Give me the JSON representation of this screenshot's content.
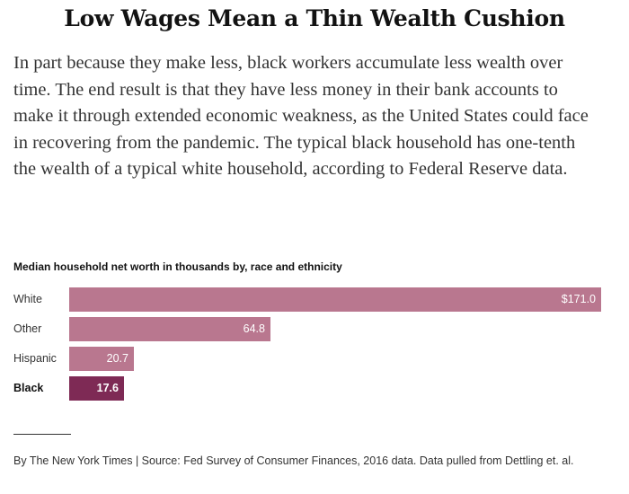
{
  "header": {
    "title": "Low Wages Mean a Thin Wealth Cushion"
  },
  "intro": {
    "text": "In part because they make less, black workers accumulate less wealth over time. The end result is that they have less money in their bank accounts to make it through extended economic weakness, as the United States could face in recovering from the pandemic. The typical black household has one-tenth the wealth of a typical white household, according to Federal Reserve data."
  },
  "chart_data": {
    "type": "bar",
    "orientation": "horizontal",
    "title": "Median household net worth in thousands by, race and ethnicity",
    "categories": [
      "White",
      "Other",
      "Hispanic",
      "Black"
    ],
    "values": [
      171.0,
      64.8,
      20.7,
      17.6
    ],
    "value_labels": [
      "$171.0",
      "64.8",
      "20.7",
      "17.6"
    ],
    "highlight": "Black",
    "xlim": [
      0,
      171.0
    ],
    "grid": false,
    "legend": "none",
    "colors": {
      "bar": "#b9778f",
      "highlight": "#7e2a55"
    }
  },
  "footer": {
    "credit": "By The New York Times | Source: Fed Survey of Consumer Finances, 2016 data. Data pulled from Dettling et. al."
  }
}
